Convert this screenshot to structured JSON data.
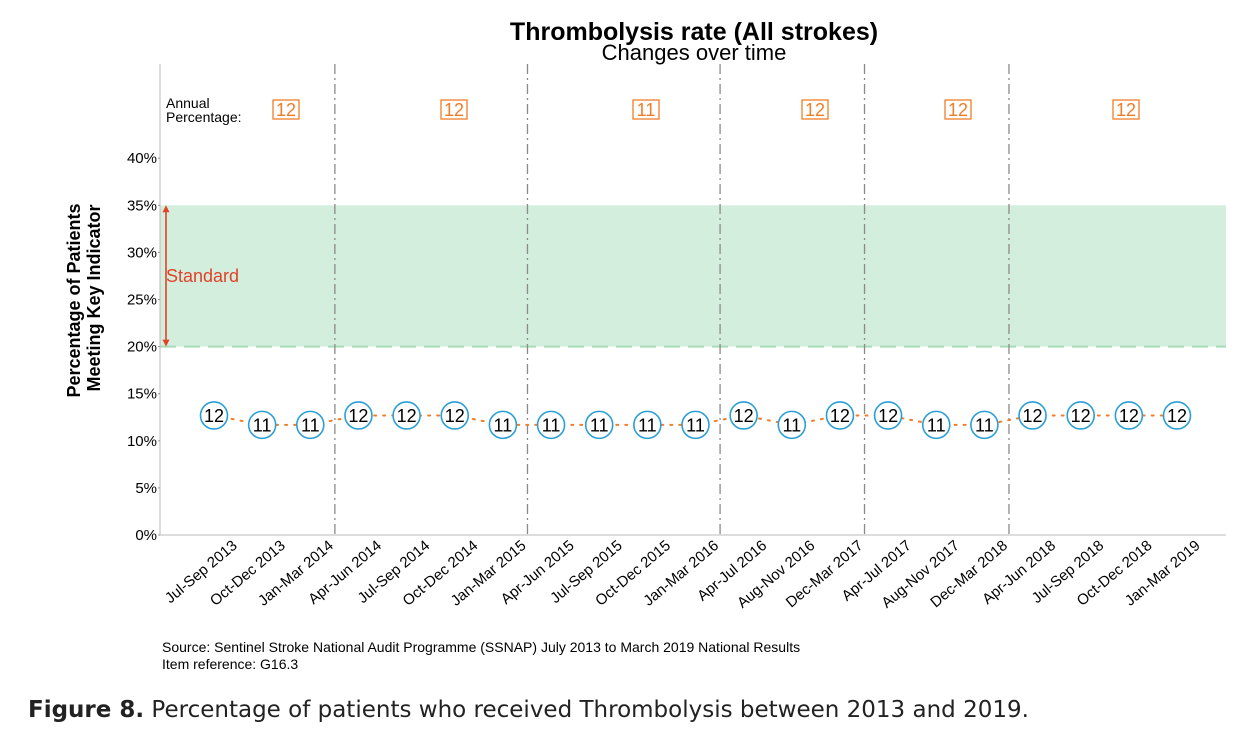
{
  "chart_data": {
    "type": "line",
    "title": "Thrombolysis rate (All strokes)",
    "subtitle": "Changes over time",
    "ylabel_line1": "Percentage of Patients",
    "ylabel_line2": "Meeting Key Indicator",
    "ylim": [
      0,
      40
    ],
    "yticks": [
      "0%",
      "5%",
      "10%",
      "15%",
      "20%",
      "25%",
      "30%",
      "35%",
      "40%"
    ],
    "ytick_values": [
      0,
      5,
      10,
      15,
      20,
      25,
      30,
      35,
      40
    ],
    "categories": [
      "Jul-Sep 2013",
      "Oct-Dec 2013",
      "Jan-Mar 2014",
      "Apr-Jun 2014",
      "Jul-Sep 2014",
      "Oct-Dec 2014",
      "Jan-Mar 2015",
      "Apr-Jun 2015",
      "Jul-Sep 2015",
      "Oct-Dec 2015",
      "Jan-Mar 2016",
      "Apr-Jul 2016",
      "Aug-Nov 2016",
      "Dec-Mar 2017",
      "Apr-Jul 2017",
      "Aug-Nov 2017",
      "Dec-Mar 2018",
      "Apr-Jun 2018",
      "Jul-Sep 2018",
      "Oct-Dec 2018",
      "Jan-Mar 2019"
    ],
    "values": [
      12,
      11,
      11,
      12,
      12,
      12,
      11,
      11,
      11,
      11,
      11,
      12,
      11,
      12,
      12,
      11,
      11,
      12,
      12,
      12,
      12
    ],
    "standard": {
      "label": "Standard",
      "low": 20,
      "high": 35
    },
    "annual_label_line1": "Annual",
    "annual_label_line2": "Percentage:",
    "annual_percentages": [
      "12",
      "12",
      "11",
      "12",
      "12",
      "12"
    ],
    "year_dividers_before_index": [
      3,
      7,
      11,
      14,
      17
    ],
    "grid": false,
    "colors": {
      "point_border": "#2a9fd6",
      "trend_line": "#f07d2a",
      "standard_band": "#d3eedd",
      "standard_line": "#a8dcb8",
      "standard_arrow": "#e2422a",
      "annual_box": "#f07d2a",
      "divider": "#8a8a8a"
    }
  },
  "source_line1": "Source: Sentinel Stroke National Audit Programme (SSNAP) July 2013 to March 2019 National Results",
  "source_line2": "Item reference: G16.3",
  "caption_bold": "Figure 8.",
  "caption_text": " Percentage of patients who received Thrombolysis between 2013 and 2019."
}
